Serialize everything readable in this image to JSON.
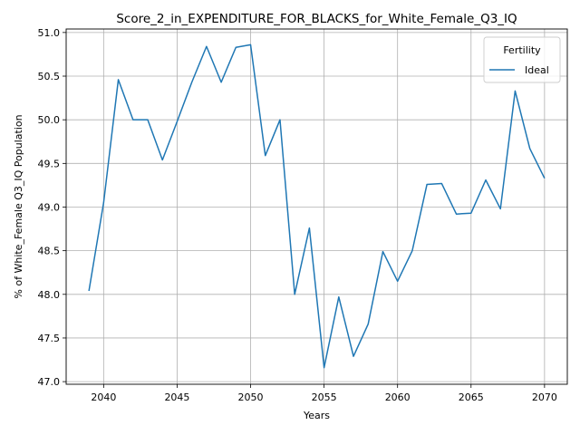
{
  "chart_data": {
    "type": "line",
    "title": "Score_2_in_EXPENDITURE_FOR_BLACKS_for_White_Female_Q3_IQ",
    "xlabel": "Years",
    "ylabel": "% of White_Female Q3_IQ Population",
    "xlim": [
      2037.45,
      2071.55
    ],
    "ylim": [
      46.97,
      51.04
    ],
    "xticks": [
      2040,
      2045,
      2050,
      2055,
      2060,
      2065,
      2070
    ],
    "yticks": [
      47.0,
      47.5,
      48.0,
      48.5,
      49.0,
      49.5,
      50.0,
      50.5,
      51.0
    ],
    "ytick_labels": [
      "47.0",
      "47.5",
      "48.0",
      "48.5",
      "49.0",
      "49.5",
      "50.0",
      "50.5",
      "51.0"
    ],
    "grid": true,
    "legend": {
      "title": "Fertility",
      "position": "upper right"
    },
    "series": [
      {
        "name": "Ideal",
        "color": "#1f77b4",
        "x": [
          2039,
          2040,
          2041,
          2042,
          2043,
          2044,
          2045,
          2046,
          2047,
          2048,
          2049,
          2050,
          2051,
          2052,
          2053,
          2054,
          2055,
          2056,
          2057,
          2058,
          2059,
          2060,
          2061,
          2062,
          2063,
          2064,
          2065,
          2066,
          2067,
          2068,
          2069,
          2070
        ],
        "values": [
          48.04,
          49.05,
          50.46,
          50.0,
          50.0,
          49.54,
          49.98,
          50.43,
          50.84,
          50.43,
          50.83,
          50.86,
          49.59,
          50.0,
          48.0,
          48.76,
          47.16,
          47.97,
          47.29,
          47.66,
          48.49,
          48.15,
          48.5,
          49.26,
          49.27,
          48.92,
          48.93,
          49.31,
          48.98,
          50.33,
          49.67,
          49.33
        ]
      }
    ]
  }
}
